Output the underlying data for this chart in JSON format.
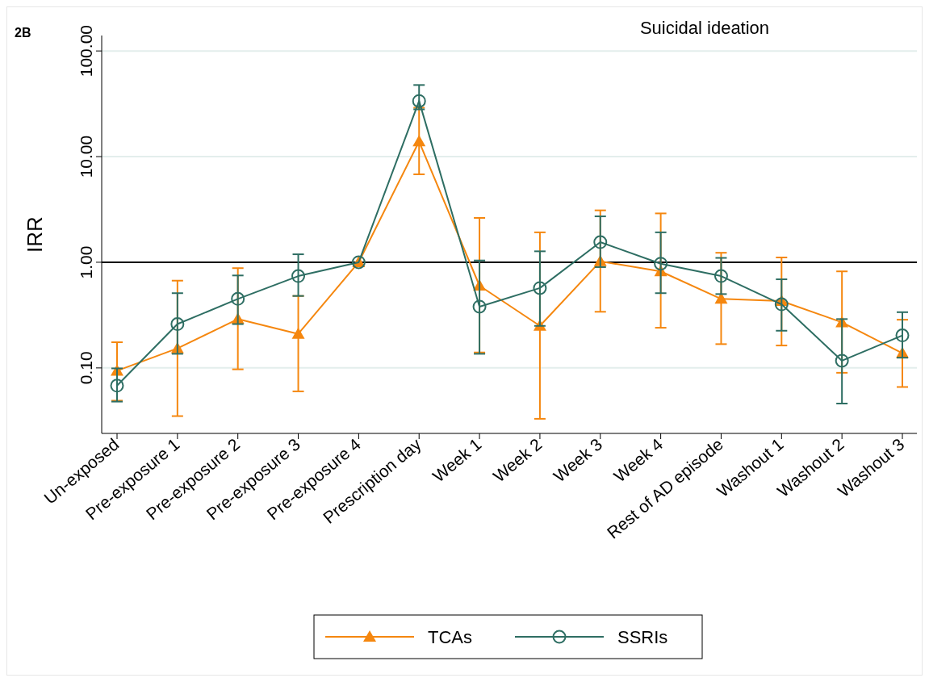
{
  "chart_data": {
    "type": "line",
    "title": "Suicidal ideation",
    "ylabel": "IRR",
    "annotations": [
      "2B"
    ],
    "categories": [
      "Un-exposed",
      "Pre-exposure 1",
      "Pre-exposure 2",
      "Pre-exposure 3",
      "Pre-exposure 4",
      "Prescription day",
      "Week 1",
      "Week 2",
      "Week 3",
      "Week 4",
      "Rest of AD episode",
      "Washout 1",
      "Washout 2",
      "Washout 3"
    ],
    "series": [
      {
        "name": "TCAs",
        "color": "#f5870f",
        "marker": "triangle",
        "values": [
          0.094,
          0.153,
          0.29,
          0.21,
          1.0,
          13.9,
          0.6,
          0.25,
          1.02,
          0.82,
          0.45,
          0.43,
          0.27,
          0.138
        ],
        "errors": [
          [
            0.049,
            0.175
          ],
          [
            0.035,
            0.67
          ],
          [
            0.097,
            0.88
          ],
          [
            0.06,
            0.48
          ],
          null,
          [
            6.8,
            29
          ],
          [
            0.14,
            2.63
          ],
          [
            0.033,
            1.92
          ],
          [
            0.34,
            3.1
          ],
          [
            0.24,
            2.9
          ],
          [
            0.168,
            1.23
          ],
          [
            0.163,
            1.11
          ],
          [
            0.09,
            0.82
          ],
          [
            0.066,
            0.286
          ]
        ]
      },
      {
        "name": "SSRIs",
        "color": "#2e6e63",
        "marker": "circle",
        "values": [
          0.068,
          0.26,
          0.45,
          0.74,
          1.0,
          33.6,
          0.38,
          0.57,
          1.55,
          0.97,
          0.74,
          0.4,
          0.117,
          0.203
        ],
        "errors": [
          [
            0.048,
            0.099
          ],
          [
            0.136,
            0.51
          ],
          [
            0.26,
            0.75
          ],
          [
            0.48,
            1.19
          ],
          null,
          [
            28,
            47.6
          ],
          [
            0.136,
            1.04
          ],
          [
            0.25,
            1.27
          ],
          [
            0.9,
            2.72
          ],
          [
            0.51,
            1.92
          ],
          [
            0.5,
            1.1
          ],
          [
            0.225,
            0.69
          ],
          [
            0.046,
            0.29
          ],
          [
            0.125,
            0.337
          ]
        ]
      }
    ],
    "log": true,
    "ylim": [
      0.024,
      140
    ],
    "yticks": [
      {
        "value": 0.1,
        "label": "0.10"
      },
      {
        "value": 1,
        "label": "1.00"
      },
      {
        "value": 10,
        "label": "10.00"
      },
      {
        "value": 100,
        "label": "100.00"
      }
    ],
    "grid": "y",
    "ref_lines": [
      {
        "axis": "y",
        "value": 1,
        "label": null,
        "color": "#000000"
      }
    ],
    "legend": "bottom",
    "line_style": "solid"
  }
}
